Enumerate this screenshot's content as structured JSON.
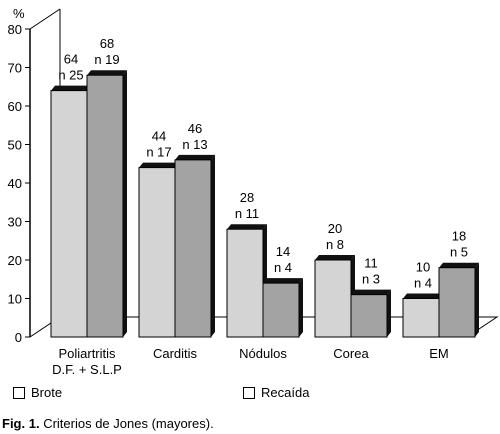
{
  "chart_data": {
    "type": "bar",
    "y_unit": "%",
    "ylim": [
      0,
      80
    ],
    "yticks": [
      0,
      10,
      20,
      30,
      40,
      50,
      60,
      70,
      80
    ],
    "categories": [
      "Poliartritis D.F. + S.L.P",
      "Carditis",
      "Nódulos",
      "Corea",
      "EM"
    ],
    "category_labels": [
      [
        "Poliartritis",
        "D.F. + S.L.P"
      ],
      [
        "Carditis"
      ],
      [
        "Nódulos"
      ],
      [
        "Corea"
      ],
      [
        "EM"
      ]
    ],
    "series": [
      {
        "name": "Brote",
        "color": "#d4d4d4",
        "values": [
          64,
          44,
          28,
          20,
          10
        ],
        "counts": [
          "n 25",
          "n 17",
          "n 11",
          "n 8",
          "n 4"
        ]
      },
      {
        "name": "Recaída",
        "color": "#a3a3a3",
        "values": [
          68,
          46,
          14,
          11,
          18
        ],
        "counts": [
          "n 19",
          "n 13",
          "n 4",
          "n 3",
          "n 5"
        ]
      }
    ],
    "legend_position": "bottom",
    "grid": false,
    "style": "3d-box"
  },
  "caption": {
    "label": "Fig. 1.",
    "text": "Criterios de Jones (mayores)."
  }
}
